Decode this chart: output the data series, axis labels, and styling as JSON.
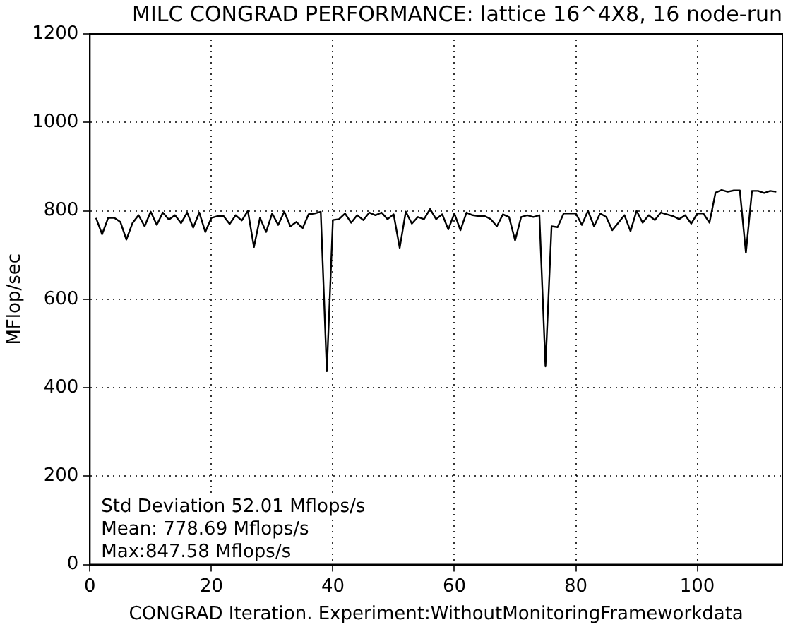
{
  "chart_data": {
    "type": "line",
    "title": "MILC CONGRAD PERFORMANCE: lattice 16^4X8, 16 node-run",
    "xlabel": "CONGRAD Iteration. Experiment:WithoutMonitoringFrameworkdata",
    "ylabel": "MFlop/sec",
    "x": [
      1,
      2,
      3,
      4,
      5,
      6,
      7,
      8,
      9,
      10,
      11,
      12,
      13,
      14,
      15,
      16,
      17,
      18,
      19,
      20,
      21,
      22,
      23,
      24,
      25,
      26,
      27,
      28,
      29,
      30,
      31,
      32,
      33,
      34,
      35,
      36,
      37,
      38,
      39,
      40,
      41,
      42,
      43,
      44,
      45,
      46,
      47,
      48,
      49,
      50,
      51,
      52,
      53,
      54,
      55,
      56,
      57,
      58,
      59,
      60,
      61,
      62,
      63,
      64,
      65,
      66,
      67,
      68,
      69,
      70,
      71,
      72,
      73,
      74,
      75,
      76,
      77,
      78,
      79,
      80,
      81,
      82,
      83,
      84,
      85,
      86,
      87,
      88,
      89,
      90,
      91,
      92,
      93,
      94,
      95,
      96,
      97,
      98,
      99,
      100,
      101,
      102,
      103,
      104,
      105,
      106,
      107,
      108,
      109,
      110,
      111,
      112,
      113
    ],
    "series": [
      {
        "color": "#000000",
        "values": [
          784,
          747,
          784,
          784,
          775,
          735,
          772,
          790,
          765,
          798,
          768,
          796,
          780,
          790,
          772,
          796,
          762,
          796,
          752,
          784,
          788,
          788,
          770,
          790,
          778,
          800,
          718,
          784,
          752,
          794,
          768,
          798,
          765,
          775,
          760,
          792,
          794,
          798,
          437,
          779,
          781,
          794,
          773,
          790,
          779,
          796,
          790,
          796,
          781,
          792,
          716,
          798,
          771,
          786,
          781,
          804,
          781,
          792,
          758,
          794,
          756,
          796,
          790,
          788,
          788,
          781,
          765,
          792,
          786,
          733,
          786,
          790,
          786,
          790,
          448,
          765,
          763,
          794,
          794,
          794,
          768,
          800,
          765,
          794,
          786,
          756,
          773,
          790,
          754,
          800,
          773,
          790,
          779,
          796,
          792,
          788,
          781,
          790,
          771,
          794,
          794,
          773,
          841,
          847,
          843,
          846,
          846,
          705,
          845,
          845,
          840,
          845,
          843
        ]
      }
    ],
    "xlim": [
      0,
      114
    ],
    "ylim": [
      0,
      1200
    ],
    "xticks": [
      0,
      20,
      40,
      60,
      80,
      100
    ],
    "yticks": [
      0,
      200,
      400,
      600,
      800,
      1000,
      1200
    ],
    "grid": true,
    "legend": false,
    "marker": "none",
    "line_style": "solid",
    "annotations": [
      "Std Deviation 52.01 Mflops/s",
      "Mean: 778.69 Mflops/s",
      "Max:847.58 Mflops/s"
    ]
  }
}
